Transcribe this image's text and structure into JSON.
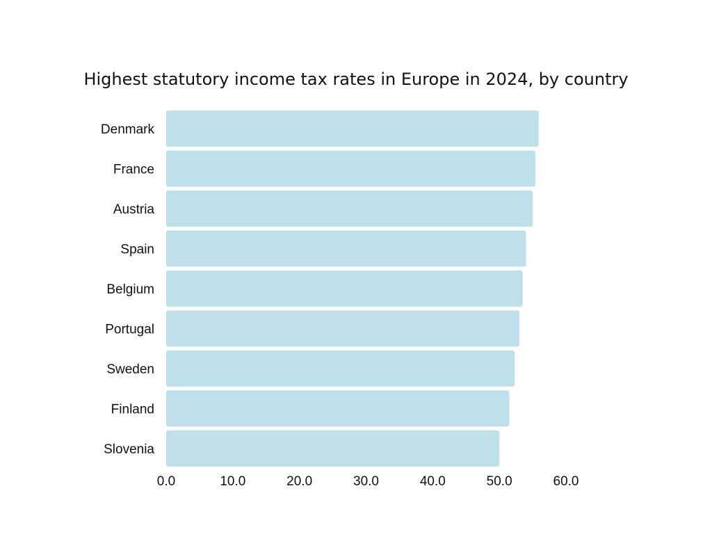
{
  "chart_data": {
    "type": "bar",
    "orientation": "horizontal",
    "title": "Highest statutory income tax rates in Europe in 2024, by country",
    "xlabel": "",
    "ylabel": "",
    "categories": [
      "Denmark",
      "France",
      "Austria",
      "Spain",
      "Belgium",
      "Portugal",
      "Sweden",
      "Finland",
      "Slovenia"
    ],
    "values": [
      55.9,
      55.4,
      55.0,
      54.0,
      53.5,
      53.0,
      52.3,
      51.5,
      50.0
    ],
    "xlim": [
      0,
      60
    ],
    "xticks": [
      "0.0",
      "10.0",
      "20.0",
      "30.0",
      "40.0",
      "50.0",
      "60.0"
    ],
    "grid": false,
    "bar_color": "#bde0ea"
  }
}
